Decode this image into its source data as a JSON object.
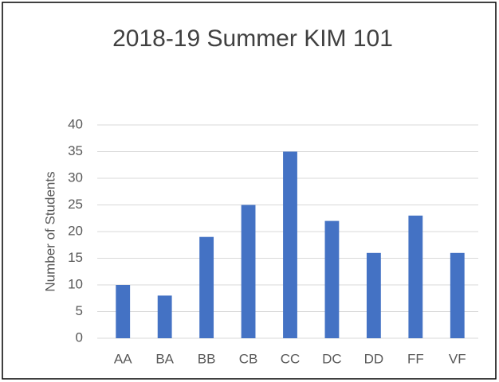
{
  "chart_data": {
    "type": "bar",
    "title": "2018-19 Summer KIM 101",
    "y_label": "Number of Students",
    "categories": [
      "AA",
      "BA",
      "BB",
      "CB",
      "CC",
      "DC",
      "DD",
      "FF",
      "VF"
    ],
    "values": [
      10,
      8,
      19,
      25,
      35,
      22,
      16,
      23,
      16
    ],
    "color": "#4472c4",
    "ylim": [
      0,
      40
    ],
    "yticks": [
      0,
      5,
      10,
      15,
      20,
      25,
      30,
      35,
      40
    ],
    "grid": true
  }
}
